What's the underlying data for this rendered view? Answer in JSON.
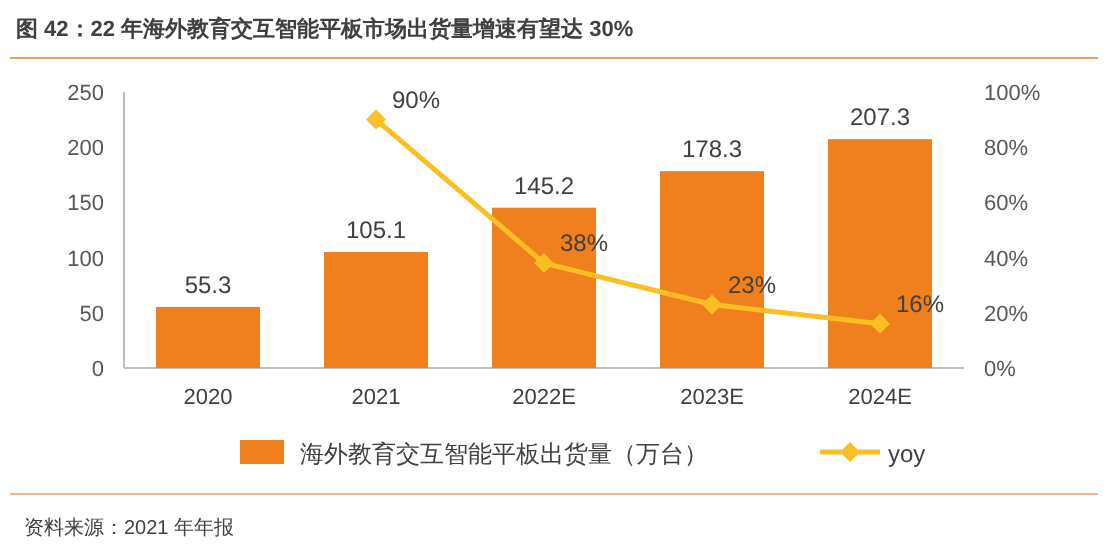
{
  "chart_data": {
    "type": "bar",
    "title": "图 42：22 年海外教育交互智能平板市场出货量增速有望达 30%",
    "categories": [
      "2020",
      "2021",
      "2022E",
      "2023E",
      "2024E"
    ],
    "series": [
      {
        "name": "海外教育交互智能平板出货量（万台）",
        "color": "#f0801e",
        "values": [
          55.3,
          105.1,
          145.2,
          178.3,
          207.3
        ],
        "value_labels": [
          "55.3",
          "105.1",
          "145.2",
          "178.3",
          "207.3"
        ]
      },
      {
        "name": "yoy",
        "type": "line",
        "axis": "y2",
        "color": "#fbbf24",
        "marker": "diamond",
        "values": [
          null,
          90,
          38,
          23,
          16
        ],
        "value_labels": [
          null,
          "90%",
          "38%",
          "23%",
          "16%"
        ]
      }
    ],
    "ylim": [
      0,
      250
    ],
    "yticks": [
      0,
      50,
      100,
      150,
      200,
      250
    ],
    "y2lim": [
      0,
      100
    ],
    "y2ticks": [
      {
        "value": 0,
        "label": "0%"
      },
      {
        "value": 20,
        "label": "20%"
      },
      {
        "value": 40,
        "label": "40%"
      },
      {
        "value": 60,
        "label": "60%"
      },
      {
        "value": 80,
        "label": "80%"
      },
      {
        "value": 100,
        "label": "100%"
      }
    ],
    "grid": false,
    "legend": "bottom",
    "annotations": [
      "资料来源：2021 年年报"
    ]
  }
}
